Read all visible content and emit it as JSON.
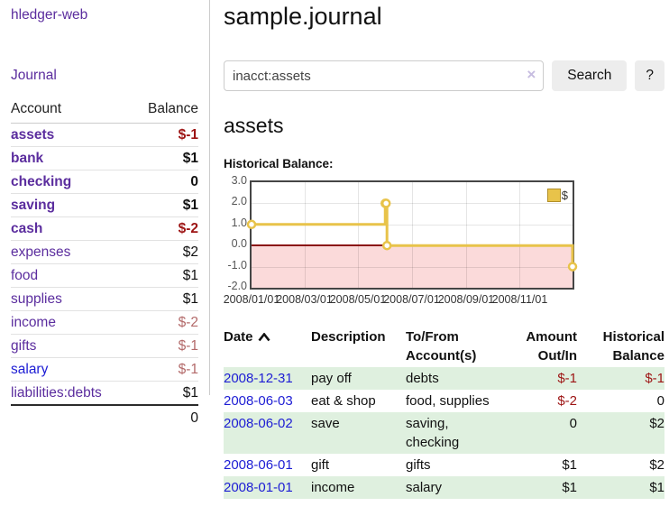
{
  "app": {
    "brand": "hledger-web",
    "nav_journal": "Journal"
  },
  "colors": {
    "purple_link": "#5b2d9e",
    "blue_link": "#1d1dd4",
    "negative_strong": "#9d1414",
    "negative_muted": "#b36a6a",
    "row_green": "#dff0df",
    "chart_gold": "#e8c34a",
    "chart_pink": "#fbdada",
    "zero_line_red": "#8b1010"
  },
  "sidebar": {
    "accounts_table": {
      "headers": {
        "account": "Account",
        "balance": "Balance"
      },
      "rows": [
        {
          "name": "assets",
          "balance": "$-1",
          "level": 1,
          "bold": true,
          "balance_style": "neg-strong"
        },
        {
          "name": "bank",
          "balance": "$1",
          "level": 2,
          "bold": true,
          "balance_style": "pos"
        },
        {
          "name": "checking",
          "balance": "0",
          "level": 3,
          "bold": true,
          "balance_style": "pos"
        },
        {
          "name": "saving",
          "balance": "$1",
          "level": 3,
          "bold": true,
          "balance_style": "pos"
        },
        {
          "name": "cash",
          "balance": "$-2",
          "level": 2,
          "bold": true,
          "balance_style": "neg-strong"
        },
        {
          "name": "expenses",
          "balance": "$2",
          "level": 1,
          "bold": false,
          "balance_style": "pos"
        },
        {
          "name": "food",
          "balance": "$1",
          "level": 2,
          "bold": false,
          "balance_style": "pos"
        },
        {
          "name": "supplies",
          "balance": "$1",
          "level": 2,
          "bold": false,
          "balance_style": "pos"
        },
        {
          "name": "income",
          "balance": "$-2",
          "level": 1,
          "bold": false,
          "balance_style": "neg-muted"
        },
        {
          "name": "gifts",
          "balance": "$-1",
          "level": 2,
          "bold": false,
          "balance_style": "neg-muted"
        },
        {
          "name": "salary",
          "balance": "$-1",
          "level": 2,
          "bold": false,
          "balance_style": "neg-muted",
          "link_style": "blue"
        },
        {
          "name": "liabilities:debts",
          "balance": "$1",
          "level": 1,
          "bold": false,
          "balance_style": "pos"
        }
      ],
      "total": "0"
    }
  },
  "header": {
    "title": "sample.journal"
  },
  "search": {
    "value": "inacct:assets",
    "clear_label": "×",
    "button": "Search",
    "help_button": "?"
  },
  "account_page": {
    "heading": "assets",
    "chart_label": "Historical Balance:"
  },
  "chart_data": {
    "type": "line",
    "title": "Historical Balance:",
    "series": [
      {
        "name": "$",
        "step": "after",
        "points": [
          [
            "2008-01-01",
            1
          ],
          [
            "2008-06-01",
            2
          ],
          [
            "2008-06-02",
            2
          ],
          [
            "2008-06-03",
            0
          ],
          [
            "2008-12-31",
            -1
          ]
        ]
      }
    ],
    "x_range": [
      "2008-01-01",
      "2008-12-31"
    ],
    "x_ticks": [
      "2008/01/01",
      "2008/03/01",
      "2008/05/01",
      "2008/07/01",
      "2008/09/01",
      "2008/11/01"
    ],
    "y_ticks": [
      "3.0",
      "2.0",
      "1.0",
      "0.0",
      "-1.0",
      "-2.0"
    ],
    "ylim": [
      -2,
      3
    ],
    "grid": true,
    "legend_position": "top-right"
  },
  "register_table": {
    "columns": [
      {
        "label": "Date",
        "sorted": "asc"
      },
      {
        "label": "Description"
      },
      {
        "label": "To/From\nAccount(s)"
      },
      {
        "label": "Amount\nOut/In",
        "align": "right"
      },
      {
        "label": "Historical\nBalance",
        "align": "right"
      }
    ],
    "rows": [
      {
        "date": "2008-12-31",
        "description": "pay off",
        "accounts": "debts",
        "amount": "$-1",
        "amount_neg": true,
        "balance": "$-1",
        "balance_neg": true,
        "shaded": true
      },
      {
        "date": "2008-06-03",
        "description": "eat & shop",
        "accounts": "food, supplies",
        "amount": "$-2",
        "amount_neg": true,
        "balance": "0",
        "balance_neg": false,
        "shaded": false
      },
      {
        "date": "2008-06-02",
        "description": "save",
        "accounts": "saving,\nchecking",
        "amount": "0",
        "amount_neg": false,
        "balance": "$2",
        "balance_neg": false,
        "shaded": true
      },
      {
        "date": "2008-06-01",
        "description": "gift",
        "accounts": "gifts",
        "amount": "$1",
        "amount_neg": false,
        "balance": "$2",
        "balance_neg": false,
        "shaded": false
      },
      {
        "date": "2008-01-01",
        "description": "income",
        "accounts": "salary",
        "amount": "$1",
        "amount_neg": false,
        "balance": "$1",
        "balance_neg": false,
        "shaded": true
      }
    ]
  }
}
